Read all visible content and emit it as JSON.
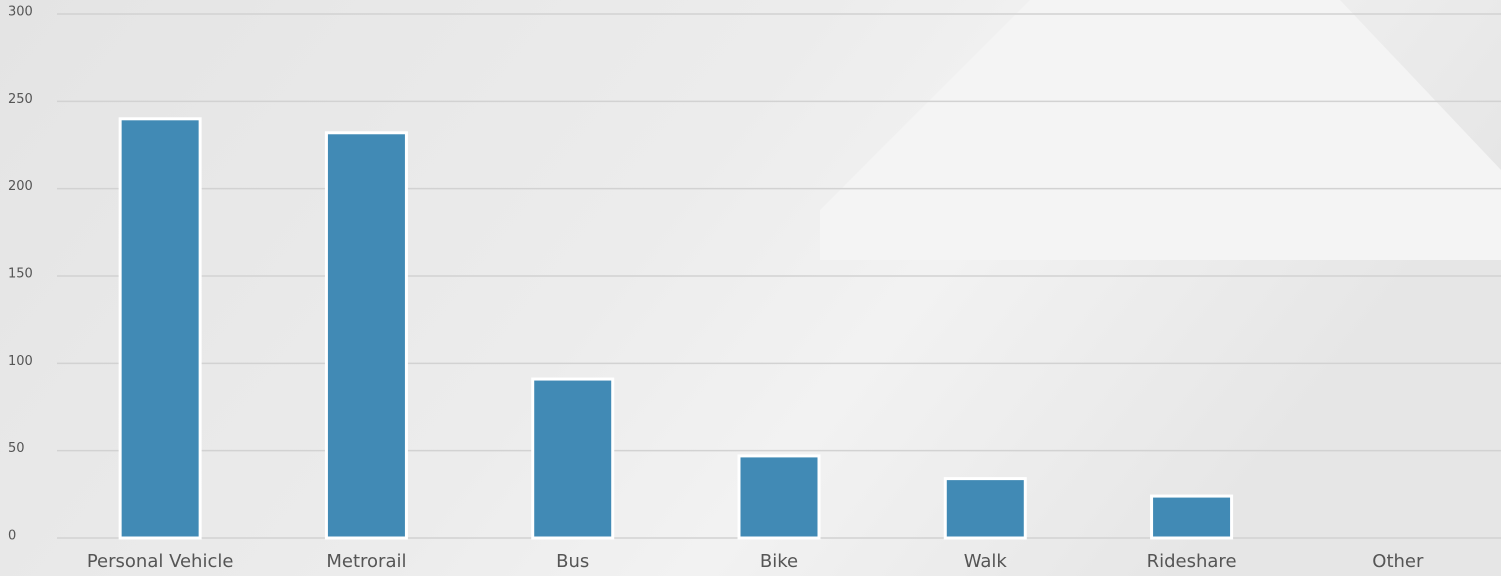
{
  "chart_data": {
    "type": "bar",
    "categories": [
      "Personal Vehicle",
      "Metrorail",
      "Bus",
      "Bike",
      "Walk",
      "Rideshare",
      "Other"
    ],
    "values": [
      240,
      232,
      91,
      47,
      34,
      24,
      0
    ],
    "color": "#418ab5",
    "ylim": [
      0,
      300
    ],
    "yticks": [
      0,
      50,
      100,
      150,
      200,
      250,
      300
    ],
    "grid": true
  }
}
